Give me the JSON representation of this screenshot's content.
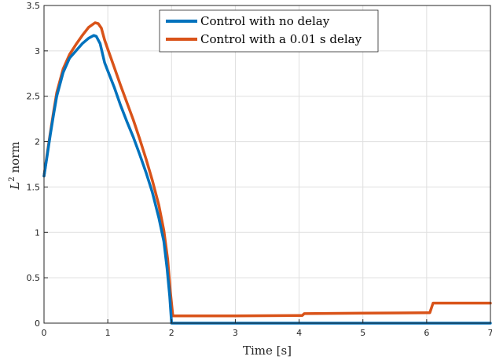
{
  "chart_data": {
    "type": "line",
    "title": "",
    "xlabel": "Time [s]",
    "ylabel_base": "L",
    "ylabel_sup": "2",
    "ylabel_rest": " norm",
    "xlim": [
      0,
      7
    ],
    "ylim": [
      0,
      3.5
    ],
    "xticks": [
      "0",
      "1",
      "2",
      "3",
      "4",
      "5",
      "6",
      "7"
    ],
    "yticks": [
      "0",
      "0.5",
      "1",
      "1.5",
      "2",
      "2.5",
      "3",
      "3.5"
    ],
    "grid": true,
    "legend_position": "top-center",
    "series": [
      {
        "name": "Control with no delay",
        "color": "#0072BD",
        "points": [
          [
            0,
            1.62
          ],
          [
            0.05,
            1.85
          ],
          [
            0.1,
            2.08
          ],
          [
            0.15,
            2.3
          ],
          [
            0.2,
            2.5
          ],
          [
            0.3,
            2.76
          ],
          [
            0.4,
            2.92
          ],
          [
            0.5,
            3.0
          ],
          [
            0.6,
            3.08
          ],
          [
            0.7,
            3.14
          ],
          [
            0.78,
            3.17
          ],
          [
            0.82,
            3.16
          ],
          [
            0.88,
            3.08
          ],
          [
            0.95,
            2.87
          ],
          [
            1.0,
            2.78
          ],
          [
            1.1,
            2.6
          ],
          [
            1.2,
            2.4
          ],
          [
            1.3,
            2.22
          ],
          [
            1.4,
            2.05
          ],
          [
            1.5,
            1.86
          ],
          [
            1.6,
            1.66
          ],
          [
            1.7,
            1.44
          ],
          [
            1.8,
            1.16
          ],
          [
            1.88,
            0.9
          ],
          [
            1.93,
            0.6
          ],
          [
            1.97,
            0.3
          ],
          [
            2.0,
            0.0
          ],
          [
            3.0,
            0.0
          ],
          [
            4.0,
            0.0
          ],
          [
            5.0,
            0.0
          ],
          [
            6.0,
            0.0
          ],
          [
            7.0,
            0.0
          ]
        ]
      },
      {
        "name": "Control with a 0.01 s delay",
        "color": "#D95319",
        "points": [
          [
            0,
            1.62
          ],
          [
            0.05,
            1.87
          ],
          [
            0.1,
            2.1
          ],
          [
            0.15,
            2.33
          ],
          [
            0.2,
            2.54
          ],
          [
            0.3,
            2.8
          ],
          [
            0.4,
            2.96
          ],
          [
            0.5,
            3.07
          ],
          [
            0.6,
            3.17
          ],
          [
            0.7,
            3.26
          ],
          [
            0.8,
            3.31
          ],
          [
            0.85,
            3.3
          ],
          [
            0.9,
            3.25
          ],
          [
            0.95,
            3.12
          ],
          [
            1.0,
            3.02
          ],
          [
            1.1,
            2.82
          ],
          [
            1.2,
            2.62
          ],
          [
            1.3,
            2.43
          ],
          [
            1.4,
            2.24
          ],
          [
            1.5,
            2.03
          ],
          [
            1.6,
            1.81
          ],
          [
            1.7,
            1.57
          ],
          [
            1.8,
            1.3
          ],
          [
            1.88,
            1.02
          ],
          [
            1.94,
            0.7
          ],
          [
            1.98,
            0.35
          ],
          [
            2.02,
            0.08
          ],
          [
            2.1,
            0.08
          ],
          [
            3.0,
            0.08
          ],
          [
            4.0,
            0.085
          ],
          [
            4.05,
            0.085
          ],
          [
            4.08,
            0.105
          ],
          [
            5.0,
            0.11
          ],
          [
            6.0,
            0.115
          ],
          [
            6.05,
            0.115
          ],
          [
            6.1,
            0.22
          ],
          [
            7.0,
            0.22
          ]
        ]
      }
    ]
  }
}
